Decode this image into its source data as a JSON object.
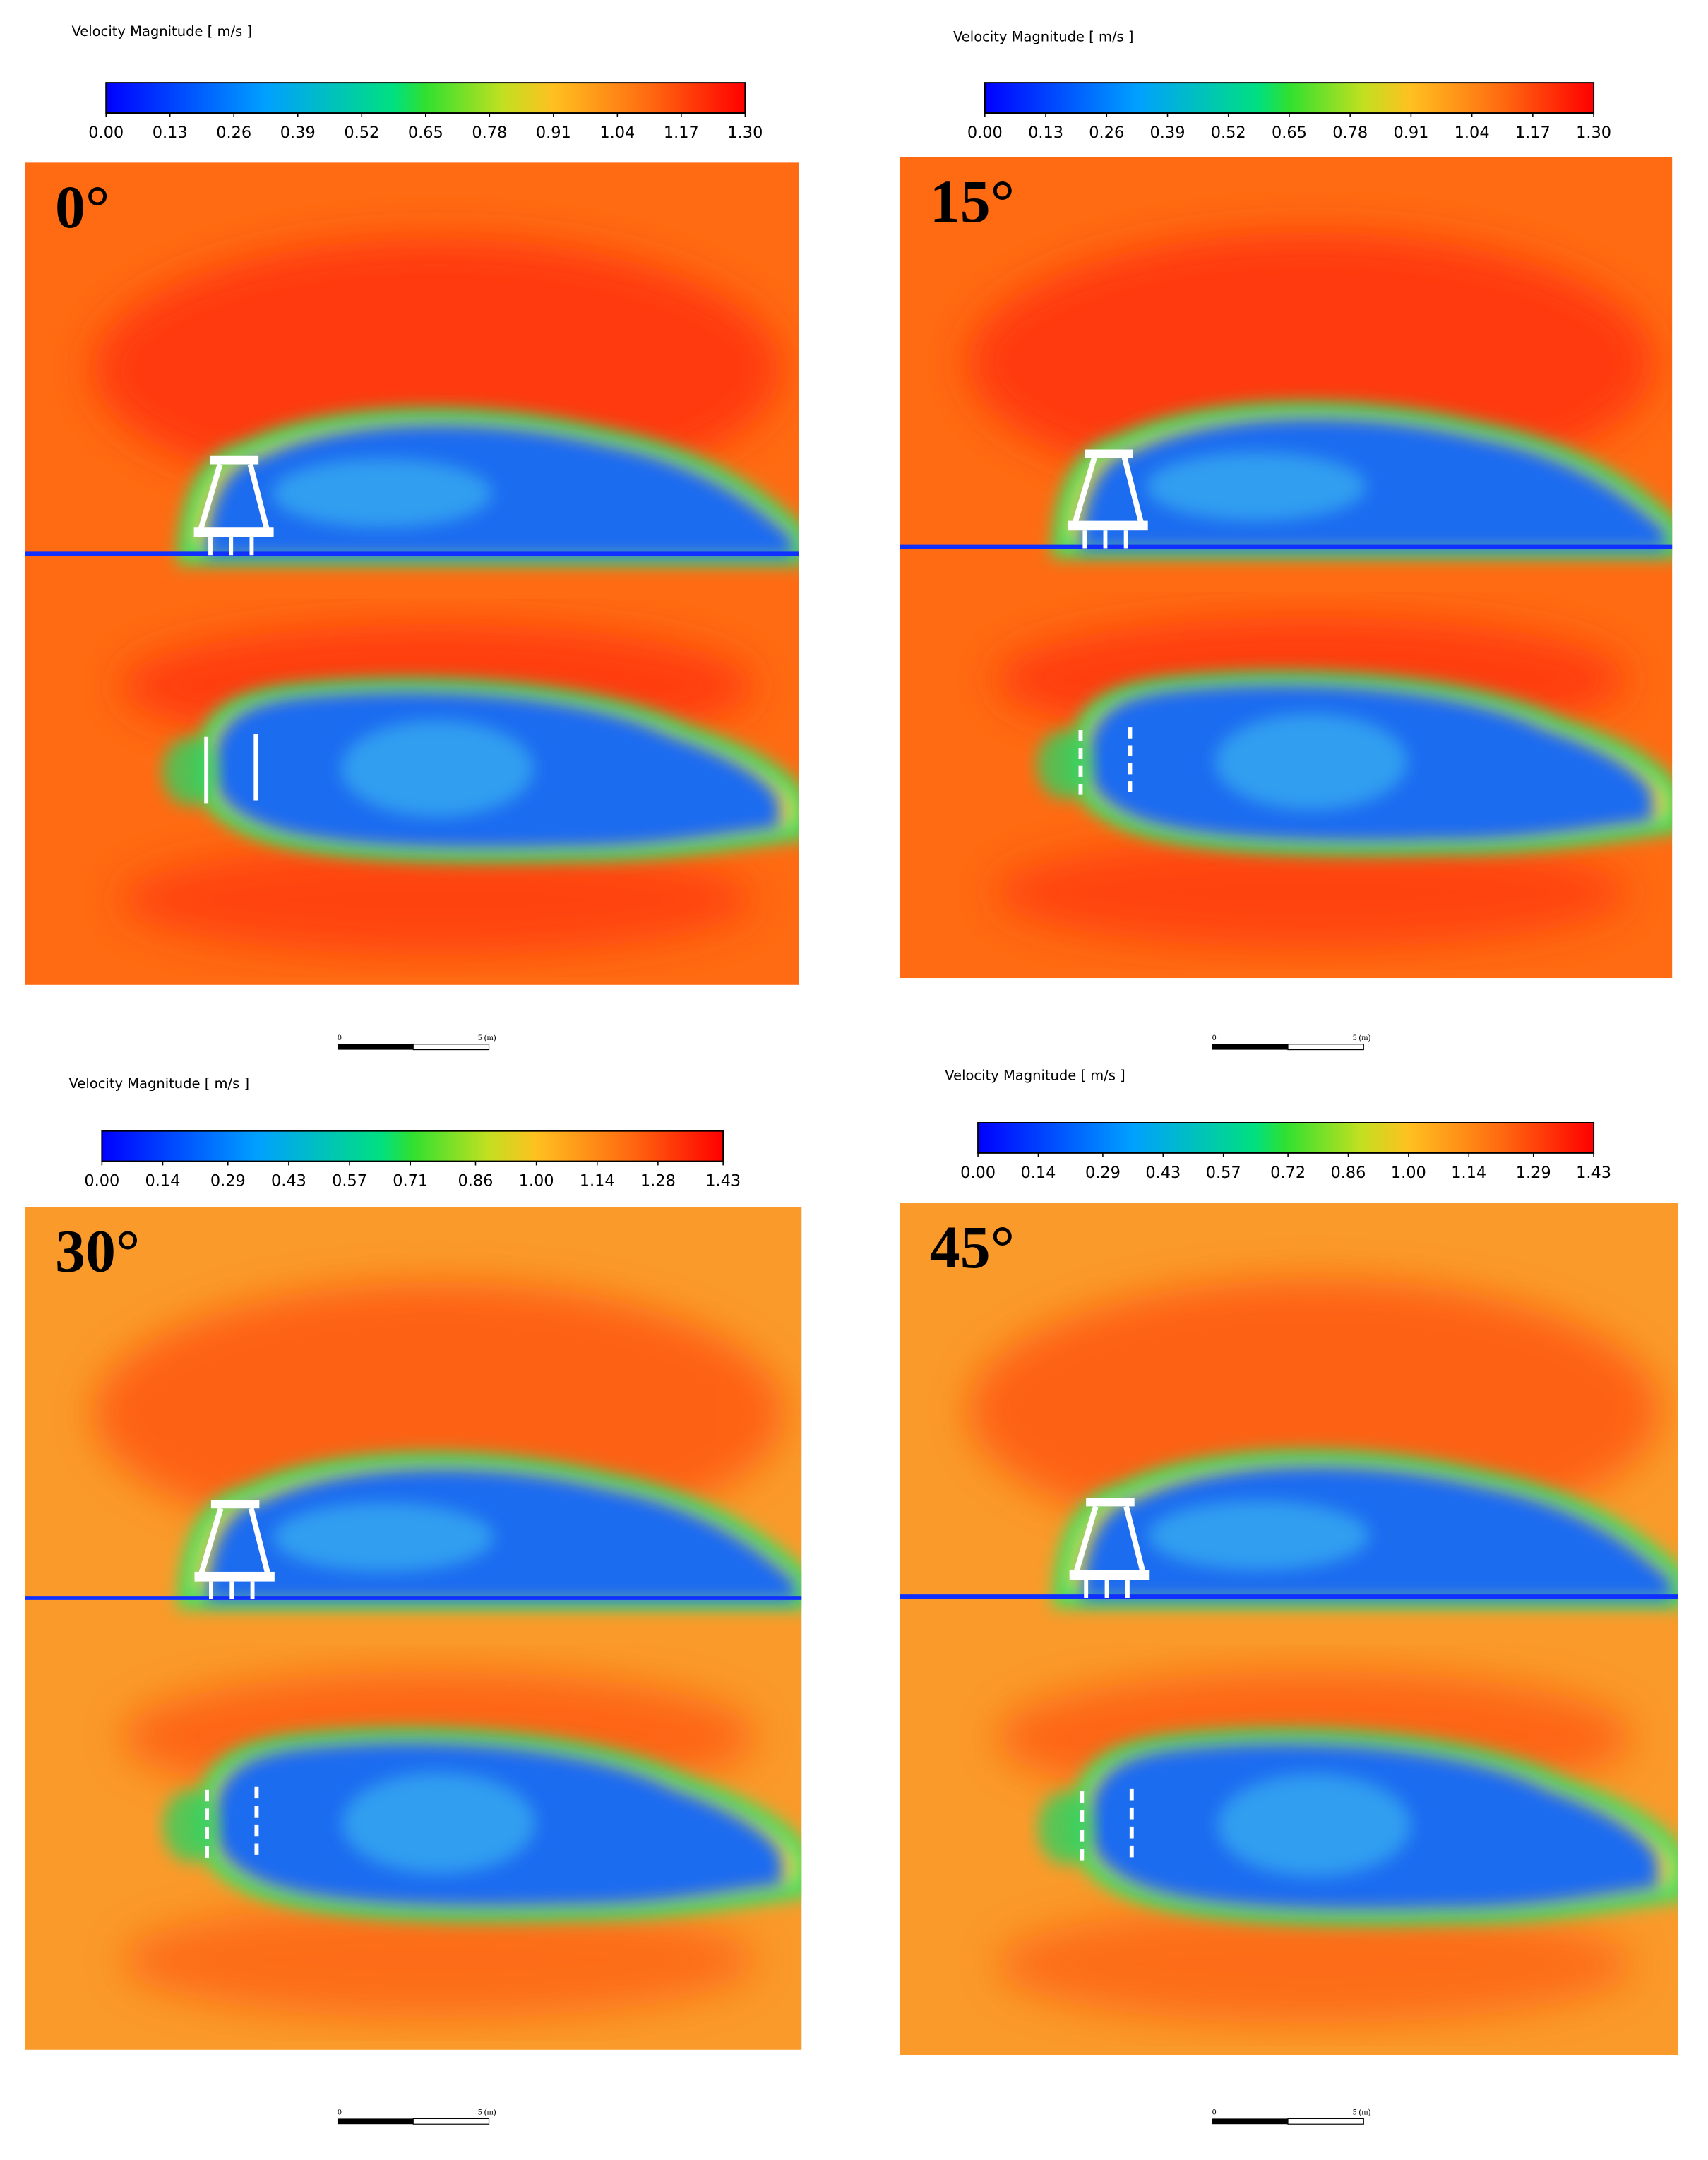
{
  "panels": [
    {
      "colorbar": {
        "title": "Velocity Magnitude [ m/s ]",
        "ticks": [
          {
            "value": 0,
            "label": "0.00"
          },
          {
            "value": 0.13,
            "label": "0.13"
          },
          {
            "value": 0.26,
            "label": "0.26"
          },
          {
            "value": 0.39,
            "label": "0.39"
          },
          {
            "value": 0.52,
            "label": "0.52"
          },
          {
            "value": 0.65,
            "label": "0.65"
          },
          {
            "value": 0.78,
            "label": "0.78"
          },
          {
            "value": 0.91,
            "label": "0.91"
          },
          {
            "value": 1.04,
            "label": "1.04"
          },
          {
            "value": 1.17,
            "label": "1.17"
          },
          {
            "value": 1.3,
            "label": "1.30"
          }
        ]
      },
      "angle": "0°",
      "scale_bar": {
        "start": "0",
        "end": "5 (m)"
      }
    },
    {
      "colorbar": {
        "title": "Velocity Magnitude [ m/s ]",
        "ticks": [
          {
            "value": 0,
            "label": "0.00"
          },
          {
            "value": 0.13,
            "label": "0.13"
          },
          {
            "value": 0.26,
            "label": "0.26"
          },
          {
            "value": 0.39,
            "label": "0.39"
          },
          {
            "value": 0.52,
            "label": "0.52"
          },
          {
            "value": 0.65,
            "label": "0.65"
          },
          {
            "value": 0.78,
            "label": "0.78"
          },
          {
            "value": 0.91,
            "label": "0.91"
          },
          {
            "value": 1.04,
            "label": "1.04"
          },
          {
            "value": 1.17,
            "label": "1.17"
          },
          {
            "value": 1.3,
            "label": "1.30"
          }
        ]
      },
      "angle": "15°",
      "scale_bar": {
        "start": "0",
        "end": "5 (m)"
      }
    },
    {
      "colorbar": {
        "title": "Velocity Magnitude [ m/s ]",
        "ticks": [
          {
            "value": 0,
            "label": "0.00"
          },
          {
            "value": 0.14,
            "label": "0.14"
          },
          {
            "value": 0.29,
            "label": "0.29"
          },
          {
            "value": 0.43,
            "label": "0.43"
          },
          {
            "value": 0.57,
            "label": "0.57"
          },
          {
            "value": 0.71,
            "label": "0.71"
          },
          {
            "value": 0.86,
            "label": "0.86"
          },
          {
            "value": 1,
            "label": "1.00"
          },
          {
            "value": 1.14,
            "label": "1.14"
          },
          {
            "value": 1.28,
            "label": "1.28"
          },
          {
            "value": 1.43,
            "label": "1.43"
          }
        ]
      },
      "angle": "30°",
      "scale_bar": {
        "start": "0",
        "end": "5 (m)"
      }
    },
    {
      "colorbar": {
        "title": "Velocity Magnitude [ m/s ]",
        "ticks": [
          {
            "value": 0,
            "label": "0.00"
          },
          {
            "value": 0.14,
            "label": "0.14"
          },
          {
            "value": 0.29,
            "label": "0.29"
          },
          {
            "value": 0.43,
            "label": "0.43"
          },
          {
            "value": 0.57,
            "label": "0.57"
          },
          {
            "value": 0.72,
            "label": "0.72"
          },
          {
            "value": 0.86,
            "label": "0.86"
          },
          {
            "value": 1,
            "label": "1.00"
          },
          {
            "value": 1.14,
            "label": "1.14"
          },
          {
            "value": 1.29,
            "label": "1.29"
          },
          {
            "value": 1.43,
            "label": "1.43"
          }
        ]
      },
      "angle": "45°",
      "scale_bar": {
        "start": "0",
        "end": "5 (m)"
      }
    }
  ]
}
